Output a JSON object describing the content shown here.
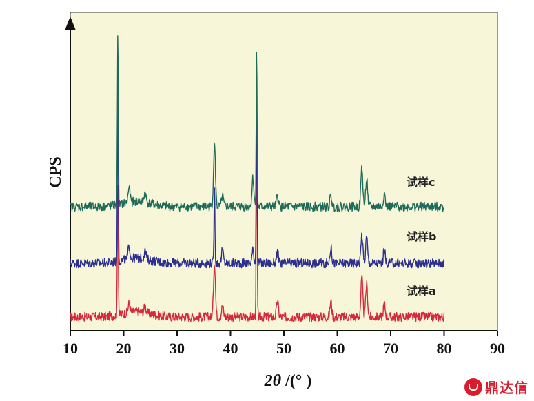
{
  "chart_data": {
    "type": "line",
    "title": "",
    "ylabel": "CPS",
    "xlabel_main": "2θ",
    "xlabel_rest": " /(° )",
    "xlim": [
      10,
      90
    ],
    "xticks": [
      10,
      20,
      30,
      40,
      50,
      60,
      70,
      80,
      90
    ],
    "y_tick_labels": "none",
    "background": "#f7f6d9",
    "x_range_data": [
      10,
      80
    ],
    "series": [
      {
        "name": "试样a",
        "color": "#d42a3c",
        "baseline": 0.0,
        "noise": 0.035,
        "peaks": [
          {
            "x": 18.9,
            "h": 1.05
          },
          {
            "x": 21.0,
            "h": 0.07
          },
          {
            "x": 24.0,
            "h": 0.05
          },
          {
            "x": 37.0,
            "h": 0.42
          },
          {
            "x": 38.5,
            "h": 0.08
          },
          {
            "x": 44.9,
            "h": 1.55
          },
          {
            "x": 48.8,
            "h": 0.12
          },
          {
            "x": 58.8,
            "h": 0.12
          },
          {
            "x": 64.6,
            "h": 0.3
          },
          {
            "x": 65.5,
            "h": 0.25
          },
          {
            "x": 68.8,
            "h": 0.1
          }
        ]
      },
      {
        "name": "试样b",
        "color": "#2c2f8f",
        "baseline": 0.0,
        "noise": 0.035,
        "peaks": [
          {
            "x": 18.9,
            "h": 1.25
          },
          {
            "x": 21.0,
            "h": 0.1
          },
          {
            "x": 24.0,
            "h": 0.06
          },
          {
            "x": 37.0,
            "h": 0.62
          },
          {
            "x": 38.5,
            "h": 0.1
          },
          {
            "x": 44.2,
            "h": 0.1
          },
          {
            "x": 44.9,
            "h": 1.2
          },
          {
            "x": 48.8,
            "h": 0.08
          },
          {
            "x": 58.8,
            "h": 0.12
          },
          {
            "x": 64.6,
            "h": 0.22
          },
          {
            "x": 65.5,
            "h": 0.2
          },
          {
            "x": 68.8,
            "h": 0.1
          }
        ]
      },
      {
        "name": "试样c",
        "color": "#1f6b5a",
        "baseline": 0.0,
        "noise": 0.035,
        "peaks": [
          {
            "x": 18.9,
            "h": 1.35
          },
          {
            "x": 21.0,
            "h": 0.12
          },
          {
            "x": 24.0,
            "h": 0.08
          },
          {
            "x": 37.0,
            "h": 0.48
          },
          {
            "x": 38.5,
            "h": 0.08
          },
          {
            "x": 44.2,
            "h": 0.22
          },
          {
            "x": 44.9,
            "h": 1.22
          },
          {
            "x": 48.8,
            "h": 0.08
          },
          {
            "x": 58.8,
            "h": 0.08
          },
          {
            "x": 64.6,
            "h": 0.3
          },
          {
            "x": 65.5,
            "h": 0.22
          },
          {
            "x": 68.8,
            "h": 0.1
          }
        ]
      }
    ]
  },
  "watermark": {
    "text": "鼎达信"
  }
}
